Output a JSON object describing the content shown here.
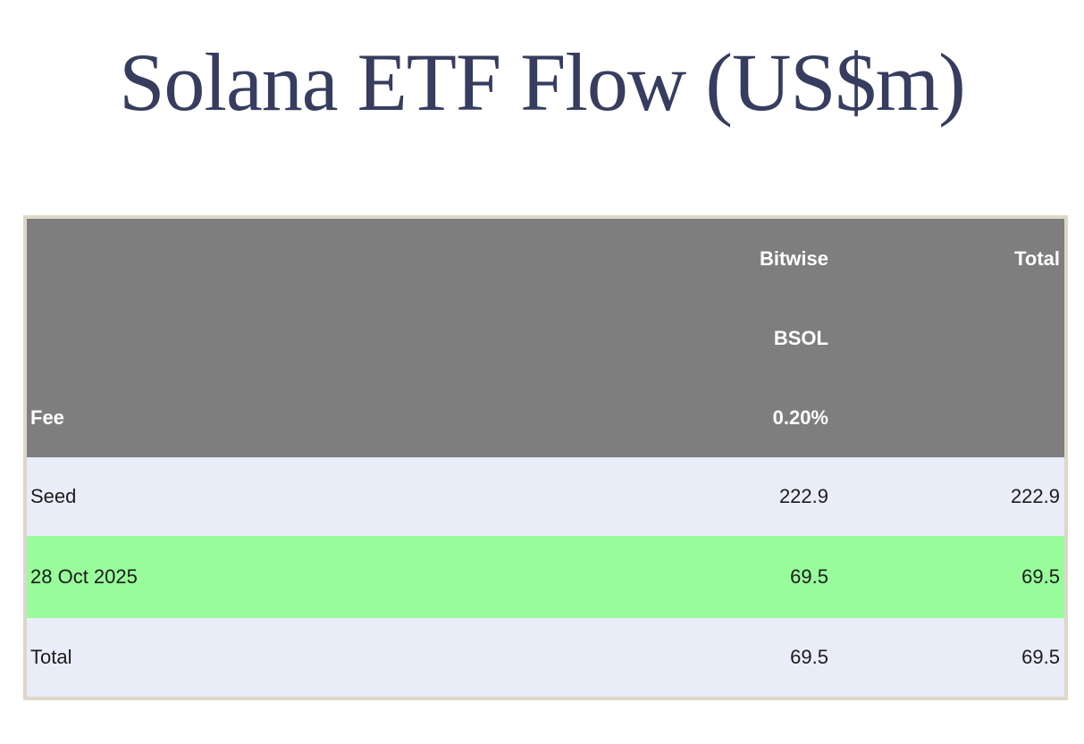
{
  "page": {
    "title": "Solana ETF Flow (US$m)"
  },
  "table": {
    "header_rows": [
      [
        "",
        "Bitwise",
        "Total"
      ],
      [
        "",
        "BSOL",
        ""
      ],
      [
        "Fee",
        "0.20%",
        ""
      ]
    ],
    "body_rows": [
      {
        "label": "Seed",
        "bitwise": "222.9",
        "total": "222.9",
        "highlighted": false
      },
      {
        "label": "28 Oct 2025",
        "bitwise": "69.5",
        "total": "69.5",
        "highlighted": true
      },
      {
        "label": "Total",
        "bitwise": "69.5",
        "total": "69.5",
        "highlighted": false
      }
    ]
  },
  "colors": {
    "title_text": "#363d5f",
    "header_bg": "#7e7e7e",
    "header_text": "#ffffff",
    "row_bg": "#e9edf8",
    "highlight_row_bg": "#98fc9a",
    "body_text": "#1c1c1c",
    "table_border": "#ded7c8",
    "page_bg": "#ffffff"
  },
  "chart_data": {
    "type": "table",
    "title": "Solana ETF Flow (US$m)",
    "columns": [
      "Fee",
      "Bitwise BSOL 0.20%",
      "Total"
    ],
    "rows": [
      [
        "Seed",
        222.9,
        222.9
      ],
      [
        "28 Oct 2025",
        69.5,
        69.5
      ],
      [
        "Total",
        69.5,
        69.5
      ]
    ],
    "highlighted_row": "28 Oct 2025",
    "units": "US$m",
    "notes": "Header spans three stacked lines: issuer (Bitwise), ticker (BSOL), fee (0.20%); Total column on right; 28 Oct 2025 daily flow row highlighted green"
  }
}
